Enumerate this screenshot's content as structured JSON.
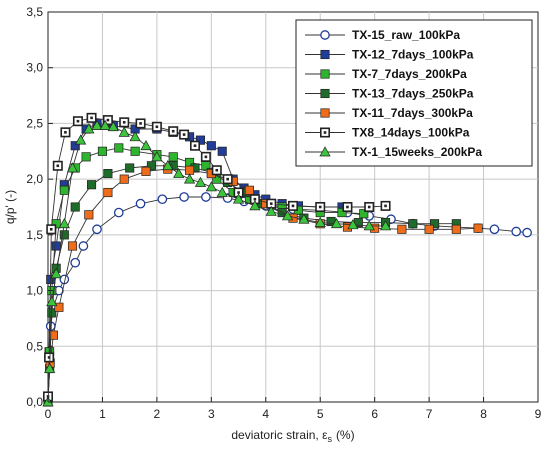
{
  "chart_data": {
    "type": "line",
    "xlabel": "deviatoric strain, ε",
    "xlabel_sub": "s",
    "xlabel_unit": "(%)",
    "ylabel": "q/p' (-)",
    "xlim": [
      0,
      9
    ],
    "ylim": [
      0,
      3.5
    ],
    "x_ticks": [
      "0",
      "1",
      "2",
      "3",
      "4",
      "5",
      "6",
      "7",
      "8",
      "9"
    ],
    "y_ticks": [
      "0,0",
      "0,5",
      "1,0",
      "1,5",
      "2,0",
      "2,5",
      "3,0",
      "3,5"
    ],
    "grid": true,
    "legend_position": "top-right",
    "series": [
      {
        "name": "TX-15_raw_100kPa",
        "color": "#1f3d99",
        "marker": "circle-open",
        "points": [
          [
            0,
            0.05
          ],
          [
            0.02,
            0.4
          ],
          [
            0.05,
            0.68
          ],
          [
            0.1,
            0.85
          ],
          [
            0.2,
            1.0
          ],
          [
            0.3,
            1.1
          ],
          [
            0.5,
            1.25
          ],
          [
            0.65,
            1.4
          ],
          [
            0.9,
            1.55
          ],
          [
            1.3,
            1.7
          ],
          [
            1.7,
            1.78
          ],
          [
            2.1,
            1.82
          ],
          [
            2.5,
            1.84
          ],
          [
            2.9,
            1.84
          ],
          [
            3.3,
            1.83
          ],
          [
            3.6,
            1.8
          ],
          [
            4.0,
            1.76
          ],
          [
            4.5,
            1.73
          ],
          [
            5.0,
            1.72
          ],
          [
            5.5,
            1.7
          ],
          [
            5.9,
            1.67
          ],
          [
            6.3,
            1.64
          ],
          [
            6.7,
            1.6
          ],
          [
            7.1,
            1.58
          ],
          [
            7.5,
            1.57
          ],
          [
            7.9,
            1.56
          ],
          [
            8.2,
            1.55
          ],
          [
            8.6,
            1.53
          ],
          [
            8.8,
            1.52
          ]
        ]
      },
      {
        "name": "TX-12_7days_100kPa",
        "color": "#1f3d99",
        "marker": "square-filled",
        "points": [
          [
            0,
            0.05
          ],
          [
            0.02,
            0.45
          ],
          [
            0.05,
            1.1
          ],
          [
            0.15,
            1.4
          ],
          [
            0.3,
            1.95
          ],
          [
            0.5,
            2.3
          ],
          [
            0.7,
            2.45
          ],
          [
            0.9,
            2.5
          ],
          [
            1.2,
            2.48
          ],
          [
            1.6,
            2.45
          ],
          [
            2.0,
            2.45
          ],
          [
            2.3,
            2.42
          ],
          [
            2.6,
            2.38
          ],
          [
            2.8,
            2.35
          ],
          [
            3.0,
            2.3
          ],
          [
            3.2,
            2.25
          ],
          [
            3.4,
            2.0
          ],
          [
            3.6,
            1.92
          ],
          [
            3.8,
            1.86
          ],
          [
            4.0,
            1.82
          ],
          [
            4.3,
            1.78
          ],
          [
            4.6,
            1.76
          ],
          [
            5.0,
            1.75
          ],
          [
            5.4,
            1.75
          ]
        ]
      },
      {
        "name": "TX-7_7days_200kPa",
        "color": "#2db52d",
        "marker": "square-filled",
        "points": [
          [
            0,
            0.05
          ],
          [
            0.03,
            0.45
          ],
          [
            0.07,
            1.0
          ],
          [
            0.15,
            1.6
          ],
          [
            0.3,
            1.9
          ],
          [
            0.5,
            2.1
          ],
          [
            0.7,
            2.2
          ],
          [
            1.0,
            2.25
          ],
          [
            1.3,
            2.28
          ],
          [
            1.6,
            2.25
          ],
          [
            2.0,
            2.22
          ],
          [
            2.3,
            2.2
          ],
          [
            2.6,
            2.15
          ],
          [
            2.9,
            2.12
          ],
          [
            3.1,
            2.0
          ],
          [
            3.4,
            1.88
          ],
          [
            3.7,
            1.82
          ],
          [
            4.0,
            1.78
          ],
          [
            4.3,
            1.75
          ],
          [
            4.6,
            1.72
          ],
          [
            5.0,
            1.7
          ],
          [
            5.4,
            1.7
          ],
          [
            5.8,
            1.69
          ]
        ]
      },
      {
        "name": "TX-13_7days_250kPa",
        "color": "#1e6b2a",
        "marker": "square-filled",
        "points": [
          [
            0,
            0.0
          ],
          [
            0.03,
            0.3
          ],
          [
            0.07,
            0.8
          ],
          [
            0.15,
            1.2
          ],
          [
            0.3,
            1.5
          ],
          [
            0.5,
            1.75
          ],
          [
            0.8,
            1.95
          ],
          [
            1.1,
            2.05
          ],
          [
            1.5,
            2.1
          ],
          [
            1.9,
            2.12
          ],
          [
            2.3,
            2.12
          ],
          [
            2.7,
            2.1
          ],
          [
            3.0,
            2.06
          ],
          [
            3.3,
            1.97
          ],
          [
            3.6,
            1.88
          ],
          [
            3.9,
            1.78
          ],
          [
            4.3,
            1.7
          ],
          [
            4.7,
            1.65
          ],
          [
            5.2,
            1.62
          ],
          [
            5.7,
            1.61
          ],
          [
            6.2,
            1.61
          ],
          [
            6.7,
            1.6
          ],
          [
            7.1,
            1.6
          ],
          [
            7.5,
            1.6
          ]
        ]
      },
      {
        "name": "TX-11_7days_300kPa",
        "color": "#ef6c1a",
        "marker": "square-filled",
        "points": [
          [
            0,
            0.05
          ],
          [
            0.04,
            0.35
          ],
          [
            0.1,
            0.6
          ],
          [
            0.2,
            0.85
          ],
          [
            0.45,
            1.4
          ],
          [
            0.75,
            1.68
          ],
          [
            1.1,
            1.88
          ],
          [
            1.4,
            2.0
          ],
          [
            1.8,
            2.07
          ],
          [
            2.2,
            2.09
          ],
          [
            2.6,
            2.08
          ],
          [
            3.0,
            2.05
          ],
          [
            3.4,
            1.98
          ],
          [
            3.7,
            1.9
          ],
          [
            4.0,
            1.78
          ],
          [
            4.5,
            1.65
          ],
          [
            5.0,
            1.6
          ],
          [
            5.5,
            1.57
          ],
          [
            6.0,
            1.56
          ],
          [
            6.5,
            1.55
          ],
          [
            7.0,
            1.55
          ],
          [
            7.5,
            1.55
          ],
          [
            7.9,
            1.56
          ]
        ]
      },
      {
        "name": "TX8_14days_100kPa",
        "color": "#222222",
        "marker": "square-open-dot",
        "points": [
          [
            0,
            0.05
          ],
          [
            0.02,
            0.4
          ],
          [
            0.06,
            1.55
          ],
          [
            0.18,
            2.12
          ],
          [
            0.32,
            2.42
          ],
          [
            0.55,
            2.52
          ],
          [
            0.8,
            2.55
          ],
          [
            1.1,
            2.53
          ],
          [
            1.4,
            2.51
          ],
          [
            1.7,
            2.5
          ],
          [
            2.0,
            2.47
          ],
          [
            2.3,
            2.43
          ],
          [
            2.5,
            2.4
          ],
          [
            2.7,
            2.3
          ],
          [
            2.9,
            2.2
          ],
          [
            3.1,
            2.08
          ],
          [
            3.3,
            2.0
          ],
          [
            3.5,
            1.88
          ],
          [
            3.8,
            1.82
          ],
          [
            4.1,
            1.78
          ],
          [
            4.5,
            1.76
          ],
          [
            5.0,
            1.75
          ],
          [
            5.5,
            1.75
          ],
          [
            5.9,
            1.75
          ],
          [
            6.2,
            1.76
          ]
        ]
      },
      {
        "name": "TX-1_15weeks_200kPa",
        "color": "#3cc43c",
        "marker": "triangle-filled",
        "points": [
          [
            0,
            0.0
          ],
          [
            0.03,
            0.3
          ],
          [
            0.07,
            0.9
          ],
          [
            0.15,
            1.15
          ],
          [
            0.3,
            1.6
          ],
          [
            0.45,
            2.1
          ],
          [
            0.6,
            2.35
          ],
          [
            0.75,
            2.45
          ],
          [
            0.9,
            2.48
          ],
          [
            1.05,
            2.48
          ],
          [
            1.2,
            2.47
          ],
          [
            1.4,
            2.42
          ],
          [
            1.6,
            2.38
          ],
          [
            1.8,
            2.3
          ],
          [
            2.0,
            2.2
          ],
          [
            2.2,
            2.12
          ],
          [
            2.4,
            2.05
          ],
          [
            2.6,
            2.0
          ],
          [
            2.8,
            1.97
          ],
          [
            3.0,
            1.93
          ],
          [
            3.2,
            1.88
          ],
          [
            3.5,
            1.82
          ],
          [
            3.8,
            1.76
          ],
          [
            4.1,
            1.71
          ],
          [
            4.4,
            1.67
          ],
          [
            4.7,
            1.64
          ],
          [
            5.0,
            1.61
          ],
          [
            5.3,
            1.6
          ],
          [
            5.6,
            1.59
          ],
          [
            5.9,
            1.58
          ],
          [
            6.2,
            1.58
          ]
        ]
      }
    ]
  }
}
